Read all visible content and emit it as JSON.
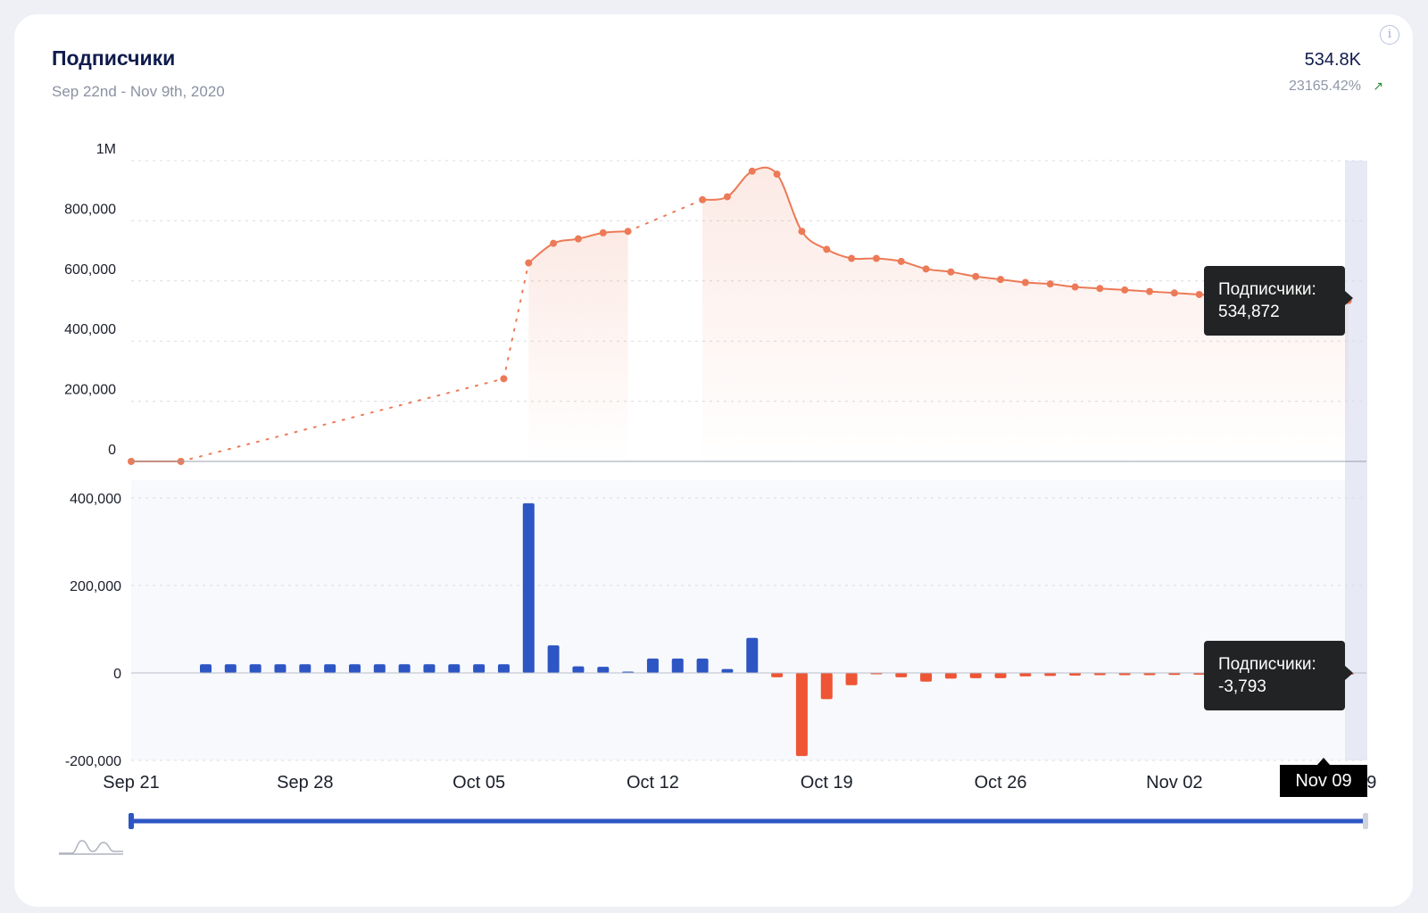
{
  "header": {
    "title": "Подписчики",
    "date_range": "Sep 22nd - Nov 9th, 2020",
    "total": "534.8K",
    "change": "23165.42%",
    "trend_icon": "arrow-up-right-icon"
  },
  "tooltips": {
    "line": {
      "label": "Подписчики:",
      "value": "534,872"
    },
    "bar": {
      "label": "Подписчики:",
      "value": "-3,793"
    },
    "date": "Nov 09"
  },
  "chart_data": [
    {
      "type": "line",
      "series": [
        {
          "name": "Подписчики"
        }
      ],
      "y_ticks": [
        "0",
        "200,000",
        "400,000",
        "600,000",
        "800,000",
        "1M"
      ],
      "ylim": [
        0,
        1000000
      ],
      "x_ticks": [
        "Sep 21",
        "Sep 28",
        "Oct 05",
        "Oct 12",
        "Oct 19",
        "Oct 26",
        "Nov 02",
        "Nov 09"
      ],
      "x_start": "2020-09-21",
      "points": [
        [
          "2020-09-21",
          0
        ],
        [
          "2020-09-23",
          0
        ],
        [
          "2020-10-06",
          275000
        ],
        [
          "2020-10-07",
          660000
        ],
        [
          "2020-10-08",
          725000
        ],
        [
          "2020-10-09",
          740000
        ],
        [
          "2020-10-10",
          760000
        ],
        [
          "2020-10-11",
          765000
        ],
        [
          "2020-10-14",
          870000
        ],
        [
          "2020-10-15",
          880000
        ],
        [
          "2020-10-16",
          965000
        ],
        [
          "2020-10-17",
          955000
        ],
        [
          "2020-10-18",
          765000
        ],
        [
          "2020-10-19",
          705000
        ],
        [
          "2020-10-20",
          675000
        ],
        [
          "2020-10-21",
          675000
        ],
        [
          "2020-10-22",
          665000
        ],
        [
          "2020-10-23",
          640000
        ],
        [
          "2020-10-24",
          630000
        ],
        [
          "2020-10-25",
          615000
        ],
        [
          "2020-10-26",
          605000
        ],
        [
          "2020-10-27",
          595000
        ],
        [
          "2020-10-28",
          590000
        ],
        [
          "2020-10-29",
          580000
        ],
        [
          "2020-10-30",
          575000
        ],
        [
          "2020-10-31",
          570000
        ],
        [
          "2020-11-01",
          565000
        ],
        [
          "2020-11-02",
          560000
        ],
        [
          "2020-11-03",
          555000
        ],
        [
          "2020-11-04",
          550000
        ],
        [
          "2020-11-05",
          545000
        ],
        [
          "2020-11-06",
          542000
        ],
        [
          "2020-11-07",
          539000
        ],
        [
          "2020-11-08",
          537000
        ],
        [
          "2020-11-09",
          534872
        ]
      ],
      "gaps": [
        [
          "2020-09-23",
          "2020-10-06"
        ],
        [
          "2020-10-06",
          "2020-10-07"
        ],
        [
          "2020-10-11",
          "2020-10-14"
        ]
      ],
      "color": "#ec7a57"
    },
    {
      "type": "bar",
      "series": [
        {
          "name": "Подписчики"
        }
      ],
      "y_ticks": [
        "-200,000",
        "0",
        "200,000",
        "400,000"
      ],
      "ylim": [
        -200000,
        400000
      ],
      "bars": [
        [
          "2020-09-24",
          20000
        ],
        [
          "2020-09-25",
          20000
        ],
        [
          "2020-09-26",
          20000
        ],
        [
          "2020-09-27",
          20000
        ],
        [
          "2020-09-28",
          20000
        ],
        [
          "2020-09-29",
          20000
        ],
        [
          "2020-09-30",
          20000
        ],
        [
          "2020-10-01",
          20000
        ],
        [
          "2020-10-02",
          20000
        ],
        [
          "2020-10-03",
          20000
        ],
        [
          "2020-10-04",
          20000
        ],
        [
          "2020-10-05",
          20000
        ],
        [
          "2020-10-06",
          20000
        ],
        [
          "2020-10-07",
          388000
        ],
        [
          "2020-10-08",
          63000
        ],
        [
          "2020-10-09",
          15000
        ],
        [
          "2020-10-10",
          14000
        ],
        [
          "2020-10-11",
          2000
        ],
        [
          "2020-10-12",
          33000
        ],
        [
          "2020-10-13",
          33000
        ],
        [
          "2020-10-14",
          33000
        ],
        [
          "2020-10-15",
          9000
        ],
        [
          "2020-10-16",
          80000
        ],
        [
          "2020-10-17",
          -10000
        ],
        [
          "2020-10-18",
          -190000
        ],
        [
          "2020-10-19",
          -60000
        ],
        [
          "2020-10-20",
          -28000
        ],
        [
          "2020-10-21",
          -1500
        ],
        [
          "2020-10-22",
          -10000
        ],
        [
          "2020-10-23",
          -20000
        ],
        [
          "2020-10-24",
          -13000
        ],
        [
          "2020-10-25",
          -12000
        ],
        [
          "2020-10-26",
          -12000
        ],
        [
          "2020-10-27",
          -8000
        ],
        [
          "2020-10-28",
          -7000
        ],
        [
          "2020-10-29",
          -6000
        ],
        [
          "2020-10-30",
          -5000
        ],
        [
          "2020-10-31",
          -5000
        ],
        [
          "2020-11-01",
          -5000
        ],
        [
          "2020-11-02",
          -4500
        ],
        [
          "2020-11-03",
          -4000
        ],
        [
          "2020-11-04",
          -4000
        ],
        [
          "2020-11-05",
          -3800
        ],
        [
          "2020-11-06",
          -3800
        ],
        [
          "2020-11-07",
          -3800
        ],
        [
          "2020-11-08",
          -3800
        ],
        [
          "2020-11-09",
          -3793
        ]
      ],
      "positive_color": "#2d56c4",
      "negative_color": "#ee5535"
    }
  ],
  "colors": {
    "accent": "#2d56c4",
    "negative": "#ee5535",
    "line": "#ec7a57",
    "highlight": "#e8eaf6"
  }
}
